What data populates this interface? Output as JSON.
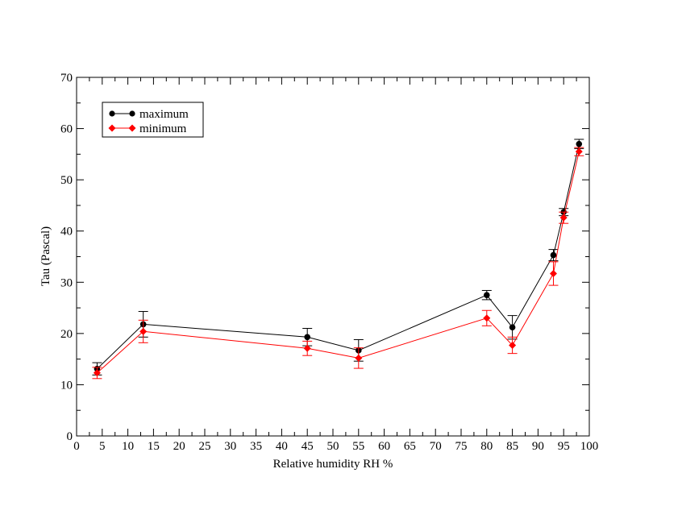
{
  "chart_data": {
    "type": "line",
    "xlabel": "Relative humidity RH %",
    "ylabel": "Tau (Pascal)",
    "xlim": [
      0,
      100
    ],
    "ylim": [
      0,
      70
    ],
    "x_major_ticks": [
      0,
      5,
      10,
      15,
      20,
      25,
      30,
      35,
      40,
      45,
      50,
      55,
      60,
      65,
      70,
      75,
      80,
      85,
      90,
      95,
      100
    ],
    "y_major_ticks": [
      0,
      10,
      20,
      30,
      40,
      50,
      60,
      70
    ],
    "grid": false,
    "legend_position": "top-left",
    "series": [
      {
        "name": "maximum",
        "color": "#000000",
        "marker": "circle",
        "points": [
          {
            "x": 4,
            "y": 13.1,
            "err": 1.2
          },
          {
            "x": 13,
            "y": 21.8,
            "err": 2.5
          },
          {
            "x": 45,
            "y": 19.3,
            "err": 1.7
          },
          {
            "x": 55,
            "y": 16.7,
            "err": 2.1
          },
          {
            "x": 80,
            "y": 27.5,
            "err": 0.9
          },
          {
            "x": 85,
            "y": 21.2,
            "err": 2.3
          },
          {
            "x": 93,
            "y": 35.3,
            "err": 1.1
          },
          {
            "x": 95,
            "y": 43.7,
            "err": 0.7
          },
          {
            "x": 98,
            "y": 57.0,
            "err": 0.9
          }
        ]
      },
      {
        "name": "minimum",
        "color": "#ff0000",
        "marker": "diamond",
        "points": [
          {
            "x": 4,
            "y": 12.3,
            "err": 1.1
          },
          {
            "x": 13,
            "y": 20.4,
            "err": 2.2
          },
          {
            "x": 45,
            "y": 17.1,
            "err": 1.4
          },
          {
            "x": 55,
            "y": 15.2,
            "err": 2.0
          },
          {
            "x": 80,
            "y": 23.0,
            "err": 1.5
          },
          {
            "x": 85,
            "y": 17.7,
            "err": 1.6
          },
          {
            "x": 93,
            "y": 31.7,
            "err": 2.3
          },
          {
            "x": 95,
            "y": 42.6,
            "err": 1.1
          },
          {
            "x": 98,
            "y": 55.5,
            "err": 0.8
          }
        ]
      }
    ]
  }
}
